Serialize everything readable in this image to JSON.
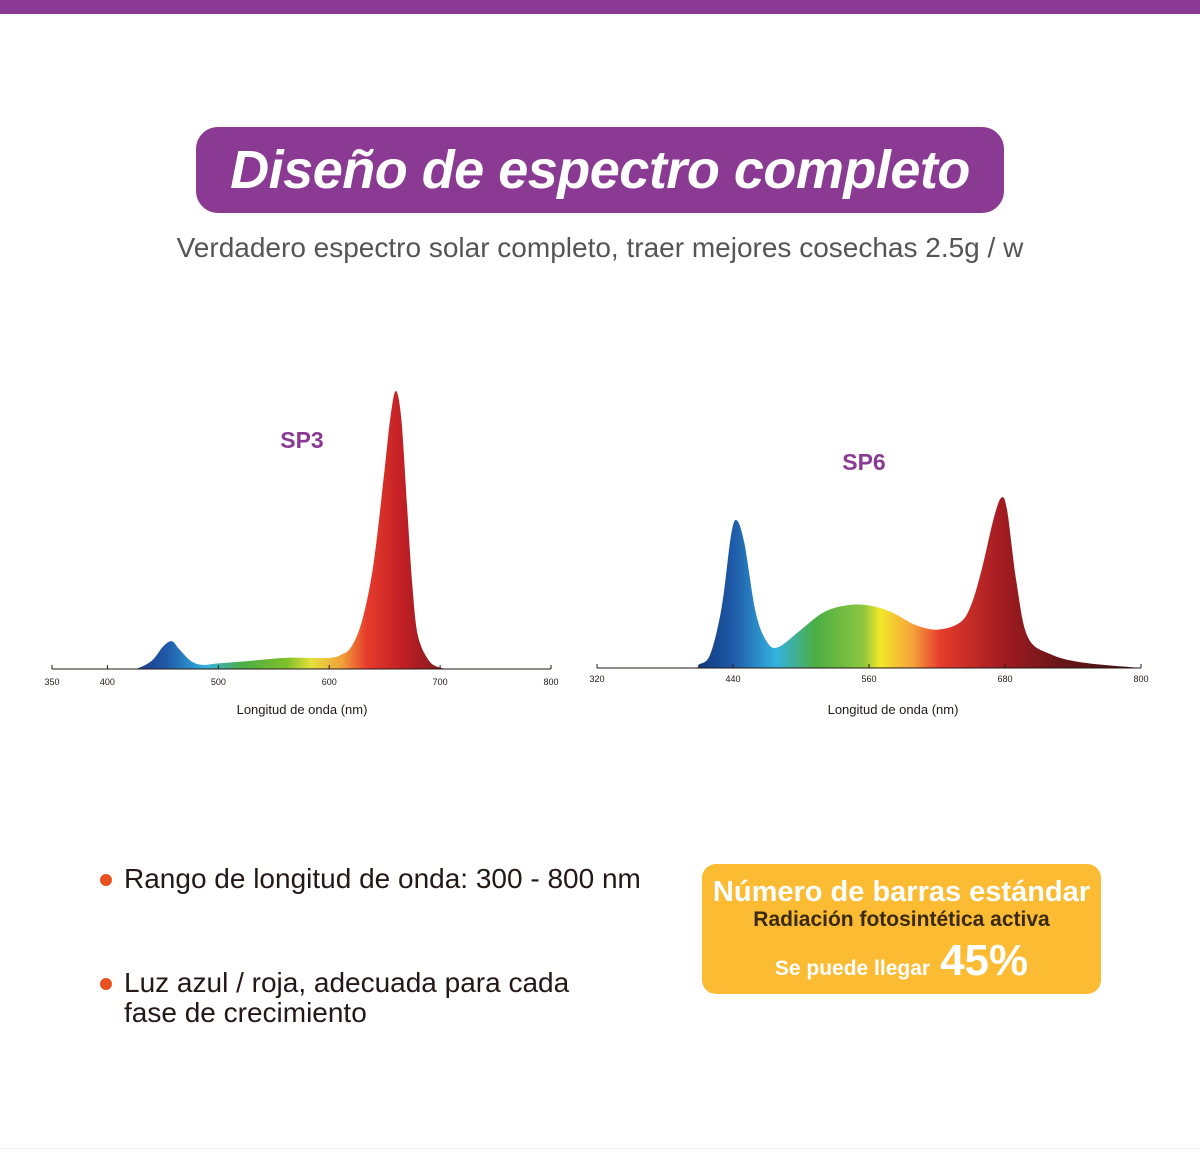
{
  "header": {
    "title": "Diseño de espectro completo",
    "subtitle": "Verdadero espectro solar completo, traer mejores cosechas 2.5g / w"
  },
  "colors": {
    "accent": "#8a3a93",
    "bullet": "#e8501e",
    "badge": "#fbbb33"
  },
  "chart_data": [
    {
      "type": "area",
      "title": "SP3",
      "xlabel": "Longitud de onda (nm)",
      "ylabel": "",
      "xticks": [
        350,
        400,
        500,
        600,
        700,
        800
      ],
      "xlim": [
        350,
        800
      ],
      "ylim": [
        0,
        1
      ],
      "grid": false,
      "x": [
        350,
        410,
        425,
        440,
        450,
        458,
        465,
        475,
        485,
        500,
        530,
        560,
        580,
        600,
        610,
        620,
        630,
        640,
        650,
        655,
        660,
        665,
        670,
        675,
        680,
        690,
        700,
        710,
        720,
        800
      ],
      "y": [
        0,
        0,
        0,
        0.03,
        0.08,
        0.1,
        0.07,
        0.03,
        0.015,
        0.02,
        0.03,
        0.04,
        0.04,
        0.04,
        0.05,
        0.08,
        0.18,
        0.38,
        0.72,
        0.9,
        1.0,
        0.9,
        0.6,
        0.3,
        0.12,
        0.03,
        0.005,
        0,
        0,
        0
      ]
    },
    {
      "type": "area",
      "title": "SP6",
      "xlabel": "Longitud de onda (nm)",
      "ylabel": "",
      "xticks": [
        320,
        440,
        560,
        680,
        800
      ],
      "xlim": [
        320,
        800
      ],
      "ylim": [
        0,
        1
      ],
      "grid": false,
      "x": [
        320,
        400,
        410,
        420,
        430,
        438,
        443,
        450,
        460,
        470,
        480,
        500,
        520,
        540,
        560,
        580,
        600,
        620,
        640,
        650,
        660,
        670,
        677,
        682,
        690,
        700,
        720,
        750,
        800
      ],
      "y": [
        0,
        0,
        0.02,
        0.08,
        0.35,
        0.75,
        0.85,
        0.72,
        0.32,
        0.15,
        0.12,
        0.22,
        0.32,
        0.36,
        0.36,
        0.32,
        0.25,
        0.22,
        0.26,
        0.36,
        0.58,
        0.86,
        0.98,
        0.9,
        0.5,
        0.18,
        0.08,
        0.03,
        0
      ]
    }
  ],
  "bullets": [
    "Rango de longitud de onda: 300 - 800 nm",
    "Luz azul / roja, adecuada para cada\nfase de crecimiento"
  ],
  "badge": {
    "title": "Número de barras estándar",
    "subtitle": "Radiación fotosintética activa",
    "lead": "Se puede llegar",
    "percent": "45%"
  }
}
